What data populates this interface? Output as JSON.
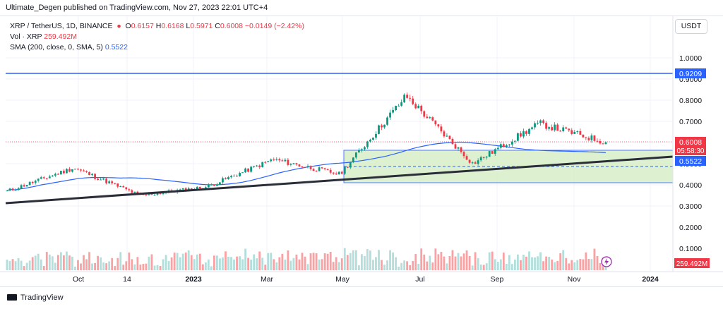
{
  "header": {
    "title": "Ultimate_Degen published on TradingView.com, Nov 27, 2023 22:01 UTC+4"
  },
  "legend": {
    "symbol": "XRP / TetherUS, 1D, BINANCE",
    "o_label": "O",
    "o_value": "0.6157",
    "h_label": "H",
    "h_value": "0.6168",
    "l_label": "L",
    "l_value": "0.5971",
    "c_label": "C",
    "c_value": "0.6008",
    "change": "−0.0149 (−2.42%)",
    "vol_label": "Vol · XRP",
    "vol_value": "259.492M",
    "sma_label": "SMA (200, close, 0, SMA, 5)",
    "sma_value": "0.5522"
  },
  "currency_button": "USDT",
  "price_tags": {
    "level": "0.9209",
    "last": "0.6008",
    "countdown": "05:58:30",
    "sma": "0.5522",
    "volume": "259.492M"
  },
  "footer": {
    "brand": "TradingView"
  },
  "colors": {
    "up": "#089981",
    "down": "#f23645",
    "level_line": "#2962ff",
    "trend_line": "#2a2e39",
    "zone_fill": "#d8efc9",
    "sma": "#2962ff"
  },
  "chart_data": {
    "type": "candlestick",
    "y_axis": {
      "ticks": [
        "1.0000",
        "0.9000",
        "0.8000",
        "0.7000",
        "0.6000",
        "0.5000",
        "0.4000",
        "0.3000"
      ],
      "volume_ticks": [
        "0.2000",
        "0.1000"
      ],
      "ylim": [
        0.28,
        1.08
      ]
    },
    "x_axis": {
      "ticks": [
        "Oct",
        "14",
        "2023",
        "Mar",
        "May",
        "Jul",
        "Sep",
        "Nov",
        "2024"
      ]
    },
    "key_levels": [
      0.9209,
      0.58,
      0.42
    ],
    "anchor_prices": [
      {
        "label": "Sep 2022",
        "value": 0.37
      },
      {
        "label": "Oct 2022",
        "value": 0.48
      },
      {
        "label": "Dec 2022",
        "value": 0.35
      },
      {
        "label": "Feb 2023",
        "value": 0.39
      },
      {
        "label": "Mar 2023",
        "value": 0.52
      },
      {
        "label": "May 2023",
        "value": 0.45
      },
      {
        "label": "Jul 2023",
        "value": 0.82
      },
      {
        "label": "Sep 2023",
        "value": 0.5
      },
      {
        "label": "Nov 2023",
        "value": 0.69
      },
      {
        "label": "Nov 27 2023",
        "value": 0.6008
      }
    ],
    "last_price": 0.6008,
    "sma_last": 0.5522
  }
}
